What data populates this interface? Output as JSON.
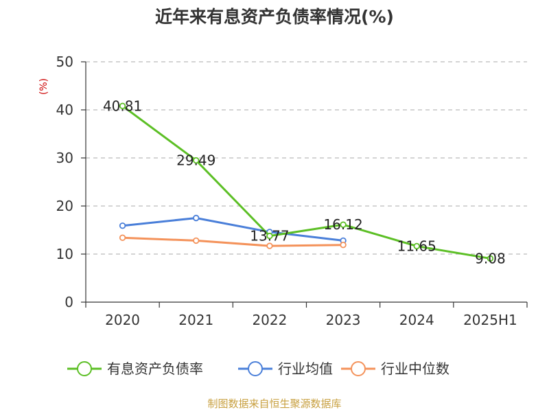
{
  "chart_data": {
    "type": "line",
    "title": "近年来有息资产负债率情况(%)",
    "unit_label": "(%)",
    "categories": [
      "2020",
      "2021",
      "2022",
      "2023",
      "2024",
      "2025H1"
    ],
    "ylim": [
      0,
      50
    ],
    "yticks": [
      "0",
      "10",
      "20",
      "30",
      "40",
      "50"
    ],
    "grid": true,
    "legend_position": "bottom",
    "series": [
      {
        "name": "有息资产负债率",
        "color": "#5cbf25",
        "values": [
          40.81,
          29.49,
          13.77,
          16.12,
          11.65,
          9.08
        ],
        "labels": [
          "40.81",
          "29.49",
          "13.77",
          "16.12",
          "11.65",
          "9.08"
        ]
      },
      {
        "name": "行业均值",
        "color": "#4a7fd9",
        "values": [
          15.9,
          17.5,
          14.6,
          12.8,
          null,
          null
        ]
      },
      {
        "name": "行业中位数",
        "color": "#f4925a",
        "values": [
          13.4,
          12.8,
          11.7,
          11.9,
          null,
          null
        ]
      }
    ]
  },
  "source_text": "制图数据来自恒生聚源数据库",
  "colors": {
    "source": "#c8a040",
    "axis": "#333333",
    "grid": "#bbbbbb"
  }
}
